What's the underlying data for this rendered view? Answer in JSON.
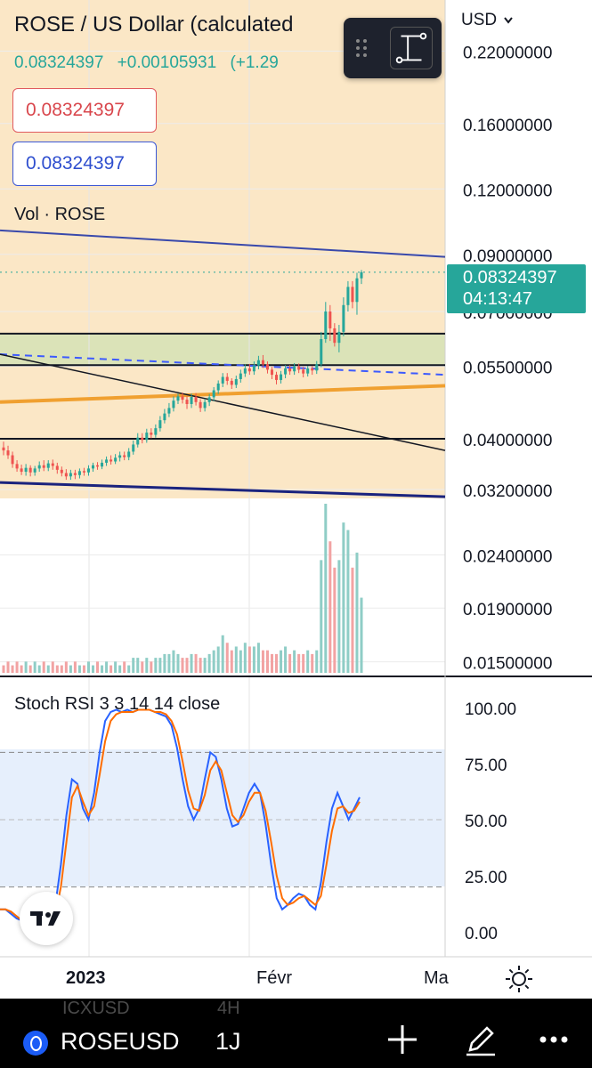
{
  "header": {
    "title": "ROSE / US Dollar (calculated",
    "last_price": "0.08324397",
    "change": "+0.00105931",
    "change_pct": "(+1.29",
    "sell_price": "0.08324397",
    "buy_price": "0.08324397",
    "currency": "USD",
    "currency_dropdown_icon": "chevron-down-icon"
  },
  "volume_label": "Vol · ROSE",
  "stoch_label": "Stoch RSI 3 3 14 14 close",
  "last_price_tag": {
    "price": "0.08324397",
    "countdown": "04:13:47"
  },
  "x_axis": {
    "labels": [
      "2023",
      "Févr",
      "Ma"
    ]
  },
  "bottom_bar": {
    "ghost_text": "ICXUSD",
    "ghost_interval": "4H",
    "symbol": "ROSEUSD",
    "interval": "1J"
  },
  "colors": {
    "up": "#26a69a",
    "down": "#ef5350",
    "stoch_k": "#2962ff",
    "stoch_d": "#ff6d00",
    "background_tint": "#fbe7c6"
  },
  "chart_data": [
    {
      "type": "candlestick",
      "y_scale": "log",
      "y_ticks": [
        "0.22000000",
        "0.16000000",
        "0.12000000",
        "0.09000000",
        "0.07000000",
        "0.05500000",
        "0.04000000",
        "0.03200000",
        "0.02400000",
        "0.01900000",
        "0.01500000"
      ],
      "x_labels": [
        "2023",
        "Févr",
        "Ma"
      ],
      "candles": [
        {
          "o": 0.0385,
          "c": 0.038,
          "h": 0.0395,
          "l": 0.0372
        },
        {
          "o": 0.038,
          "c": 0.0372,
          "h": 0.0388,
          "l": 0.0366
        },
        {
          "o": 0.0372,
          "c": 0.0358,
          "h": 0.0378,
          "l": 0.0352
        },
        {
          "o": 0.0358,
          "c": 0.0351,
          "h": 0.0364,
          "l": 0.0346
        },
        {
          "o": 0.0351,
          "c": 0.0346,
          "h": 0.0357,
          "l": 0.0341
        },
        {
          "o": 0.0346,
          "c": 0.0352,
          "h": 0.0358,
          "l": 0.034
        },
        {
          "o": 0.0352,
          "c": 0.0345,
          "h": 0.0356,
          "l": 0.0339
        },
        {
          "o": 0.0345,
          "c": 0.0351,
          "h": 0.0355,
          "l": 0.034
        },
        {
          "o": 0.0351,
          "c": 0.0356,
          "h": 0.0362,
          "l": 0.0346
        },
        {
          "o": 0.0356,
          "c": 0.0352,
          "h": 0.0364,
          "l": 0.0347
        },
        {
          "o": 0.0352,
          "c": 0.0359,
          "h": 0.0364,
          "l": 0.0347
        },
        {
          "o": 0.0359,
          "c": 0.0355,
          "h": 0.0365,
          "l": 0.0349
        },
        {
          "o": 0.0355,
          "c": 0.0349,
          "h": 0.036,
          "l": 0.0343
        },
        {
          "o": 0.0349,
          "c": 0.0344,
          "h": 0.0354,
          "l": 0.0339
        },
        {
          "o": 0.0344,
          "c": 0.0339,
          "h": 0.035,
          "l": 0.0334
        },
        {
          "o": 0.0339,
          "c": 0.0344,
          "h": 0.0349,
          "l": 0.0334
        },
        {
          "o": 0.0344,
          "c": 0.0341,
          "h": 0.0349,
          "l": 0.0335
        },
        {
          "o": 0.0341,
          "c": 0.0347,
          "h": 0.0351,
          "l": 0.0336
        },
        {
          "o": 0.0347,
          "c": 0.0345,
          "h": 0.0352,
          "l": 0.034
        },
        {
          "o": 0.0345,
          "c": 0.0351,
          "h": 0.0356,
          "l": 0.034
        },
        {
          "o": 0.0351,
          "c": 0.0356,
          "h": 0.036,
          "l": 0.0346
        },
        {
          "o": 0.0356,
          "c": 0.0354,
          "h": 0.0361,
          "l": 0.0349
        },
        {
          "o": 0.0354,
          "c": 0.036,
          "h": 0.0365,
          "l": 0.035
        },
        {
          "o": 0.036,
          "c": 0.0365,
          "h": 0.037,
          "l": 0.0355
        },
        {
          "o": 0.0365,
          "c": 0.0362,
          "h": 0.0372,
          "l": 0.0357
        },
        {
          "o": 0.0362,
          "c": 0.0368,
          "h": 0.0374,
          "l": 0.0358
        },
        {
          "o": 0.0368,
          "c": 0.0372,
          "h": 0.0378,
          "l": 0.0362
        },
        {
          "o": 0.0372,
          "c": 0.0369,
          "h": 0.0378,
          "l": 0.0364
        },
        {
          "o": 0.0369,
          "c": 0.0378,
          "h": 0.0384,
          "l": 0.0364
        },
        {
          "o": 0.0378,
          "c": 0.039,
          "h": 0.0397,
          "l": 0.0373
        },
        {
          "o": 0.039,
          "c": 0.0402,
          "h": 0.041,
          "l": 0.0385
        },
        {
          "o": 0.0402,
          "c": 0.0398,
          "h": 0.041,
          "l": 0.0392
        },
        {
          "o": 0.0398,
          "c": 0.0411,
          "h": 0.0418,
          "l": 0.0393
        },
        {
          "o": 0.0411,
          "c": 0.0407,
          "h": 0.0419,
          "l": 0.0401
        },
        {
          "o": 0.0407,
          "c": 0.0419,
          "h": 0.0426,
          "l": 0.0402
        },
        {
          "o": 0.0419,
          "c": 0.0434,
          "h": 0.0442,
          "l": 0.0413
        },
        {
          "o": 0.0434,
          "c": 0.0447,
          "h": 0.0456,
          "l": 0.0428
        },
        {
          "o": 0.0447,
          "c": 0.0458,
          "h": 0.0468,
          "l": 0.044
        },
        {
          "o": 0.0458,
          "c": 0.0473,
          "h": 0.0482,
          "l": 0.0451
        },
        {
          "o": 0.0473,
          "c": 0.0482,
          "h": 0.0488,
          "l": 0.0466
        },
        {
          "o": 0.0482,
          "c": 0.0475,
          "h": 0.049,
          "l": 0.0467
        },
        {
          "o": 0.0475,
          "c": 0.0466,
          "h": 0.0482,
          "l": 0.0456
        },
        {
          "o": 0.0466,
          "c": 0.0481,
          "h": 0.0488,
          "l": 0.0458
        },
        {
          "o": 0.0481,
          "c": 0.047,
          "h": 0.0489,
          "l": 0.0463
        },
        {
          "o": 0.047,
          "c": 0.0458,
          "h": 0.0476,
          "l": 0.045
        },
        {
          "o": 0.0458,
          "c": 0.047,
          "h": 0.0477,
          "l": 0.0451
        },
        {
          "o": 0.047,
          "c": 0.048,
          "h": 0.0487,
          "l": 0.0462
        },
        {
          "o": 0.048,
          "c": 0.0495,
          "h": 0.0502,
          "l": 0.0472
        },
        {
          "o": 0.0495,
          "c": 0.051,
          "h": 0.0517,
          "l": 0.0487
        },
        {
          "o": 0.051,
          "c": 0.0525,
          "h": 0.0534,
          "l": 0.0502
        },
        {
          "o": 0.0525,
          "c": 0.0516,
          "h": 0.0534,
          "l": 0.0507
        },
        {
          "o": 0.0516,
          "c": 0.0507,
          "h": 0.0522,
          "l": 0.0498
        },
        {
          "o": 0.0507,
          "c": 0.052,
          "h": 0.0528,
          "l": 0.05
        },
        {
          "o": 0.052,
          "c": 0.0533,
          "h": 0.0542,
          "l": 0.0512
        },
        {
          "o": 0.0533,
          "c": 0.0545,
          "h": 0.0555,
          "l": 0.0525
        },
        {
          "o": 0.0545,
          "c": 0.0538,
          "h": 0.0556,
          "l": 0.053
        },
        {
          "o": 0.0538,
          "c": 0.0552,
          "h": 0.0562,
          "l": 0.053
        },
        {
          "o": 0.0552,
          "c": 0.0565,
          "h": 0.0576,
          "l": 0.0543
        },
        {
          "o": 0.0565,
          "c": 0.0555,
          "h": 0.0578,
          "l": 0.0546
        },
        {
          "o": 0.0555,
          "c": 0.0542,
          "h": 0.0562,
          "l": 0.0533
        },
        {
          "o": 0.0542,
          "c": 0.053,
          "h": 0.0549,
          "l": 0.052
        },
        {
          "o": 0.053,
          "c": 0.0518,
          "h": 0.0537,
          "l": 0.0508
        },
        {
          "o": 0.0518,
          "c": 0.0531,
          "h": 0.0539,
          "l": 0.051
        },
        {
          "o": 0.0531,
          "c": 0.0545,
          "h": 0.0553,
          "l": 0.0522
        },
        {
          "o": 0.0545,
          "c": 0.0538,
          "h": 0.0553,
          "l": 0.053
        },
        {
          "o": 0.0538,
          "c": 0.055,
          "h": 0.0558,
          "l": 0.053
        },
        {
          "o": 0.055,
          "c": 0.0542,
          "h": 0.0557,
          "l": 0.0534
        },
        {
          "o": 0.0542,
          "c": 0.0533,
          "h": 0.0549,
          "l": 0.0524
        },
        {
          "o": 0.0533,
          "c": 0.0545,
          "h": 0.0551,
          "l": 0.0526
        },
        {
          "o": 0.0545,
          "c": 0.054,
          "h": 0.0551,
          "l": 0.053
        },
        {
          "o": 0.054,
          "c": 0.0555,
          "h": 0.0563,
          "l": 0.0532
        },
        {
          "o": 0.0555,
          "c": 0.062,
          "h": 0.064,
          "l": 0.0548
        },
        {
          "o": 0.062,
          "c": 0.07,
          "h": 0.073,
          "l": 0.061
        },
        {
          "o": 0.07,
          "c": 0.065,
          "h": 0.072,
          "l": 0.0615
        },
        {
          "o": 0.065,
          "c": 0.061,
          "h": 0.0665,
          "l": 0.06
        },
        {
          "o": 0.061,
          "c": 0.064,
          "h": 0.066,
          "l": 0.0585
        },
        {
          "o": 0.064,
          "c": 0.072,
          "h": 0.0745,
          "l": 0.0628
        },
        {
          "o": 0.072,
          "c": 0.078,
          "h": 0.08,
          "l": 0.07
        },
        {
          "o": 0.078,
          "c": 0.073,
          "h": 0.08,
          "l": 0.071
        },
        {
          "o": 0.073,
          "c": 0.081,
          "h": 0.083,
          "l": 0.069
        },
        {
          "o": 0.081,
          "c": 0.0832,
          "h": 0.084,
          "l": 0.079
        }
      ],
      "volume": [
        2,
        3,
        2,
        3,
        2,
        3,
        2,
        3,
        2,
        3,
        2,
        3,
        2,
        2,
        3,
        2,
        3,
        2,
        2,
        3,
        2,
        3,
        2,
        3,
        2,
        3,
        2,
        3,
        2,
        4,
        4,
        3,
        4,
        3,
        4,
        4,
        5,
        5,
        6,
        5,
        4,
        4,
        5,
        5,
        4,
        4,
        5,
        6,
        7,
        10,
        8,
        6,
        7,
        6,
        8,
        7,
        7,
        8,
        6,
        6,
        5,
        5,
        6,
        7,
        5,
        6,
        5,
        5,
        6,
        5,
        6,
        30,
        45,
        35,
        28,
        30,
        40,
        38,
        28,
        32,
        20
      ],
      "lines": [
        {
          "name": "upper-channel-blue",
          "from": 0.1,
          "to": 0.089
        },
        {
          "name": "resistance-top",
          "value": 0.0635
        },
        {
          "name": "resistance-bottom",
          "value": 0.0553
        },
        {
          "name": "dashed-blue",
          "from": 0.058,
          "to": 0.053
        },
        {
          "name": "support-orange",
          "from": 0.047,
          "to": 0.0505
        },
        {
          "name": "descending-black",
          "from": 0.058,
          "to": 0.038
        },
        {
          "name": "support-black",
          "value": 0.04
        },
        {
          "name": "lower-channel-navy",
          "from": 0.033,
          "to": 0.031
        }
      ]
    },
    {
      "type": "line",
      "title": "Stoch RSI 3 3 14 14 close",
      "y_ticks": [
        "100.00",
        "75.00",
        "50.00",
        "25.00",
        "0.00"
      ],
      "ylim": [
        0,
        100
      ],
      "bands": [
        20,
        80
      ],
      "series": [
        {
          "values": [
            10,
            10,
            8,
            6,
            5,
            4,
            3,
            2,
            3,
            5,
            12,
            30,
            52,
            68,
            66,
            55,
            50,
            62,
            80,
            94,
            98,
            99,
            98,
            99,
            98,
            99,
            99,
            99,
            98,
            97,
            96,
            92,
            82,
            68,
            56,
            50,
            55,
            68,
            80,
            78,
            68,
            55,
            47,
            48,
            55,
            62,
            66,
            62,
            48,
            30,
            15,
            10,
            12,
            15,
            17,
            16,
            12,
            10,
            22,
            40,
            55,
            62,
            56,
            50,
            55,
            60
          ]
        },
        {
          "values": [
            10,
            10,
            9,
            7,
            5,
            4,
            3,
            3,
            3,
            4,
            8,
            20,
            40,
            60,
            65,
            58,
            52,
            56,
            70,
            85,
            94,
            97,
            98,
            98,
            98,
            99,
            99,
            99,
            98,
            98,
            97,
            94,
            88,
            76,
            63,
            55,
            54,
            61,
            72,
            76,
            72,
            62,
            52,
            49,
            52,
            58,
            62,
            62,
            54,
            40,
            25,
            15,
            12,
            13,
            15,
            16,
            14,
            12,
            16,
            30,
            45,
            55,
            56,
            53,
            54,
            58
          ]
        }
      ]
    }
  ]
}
